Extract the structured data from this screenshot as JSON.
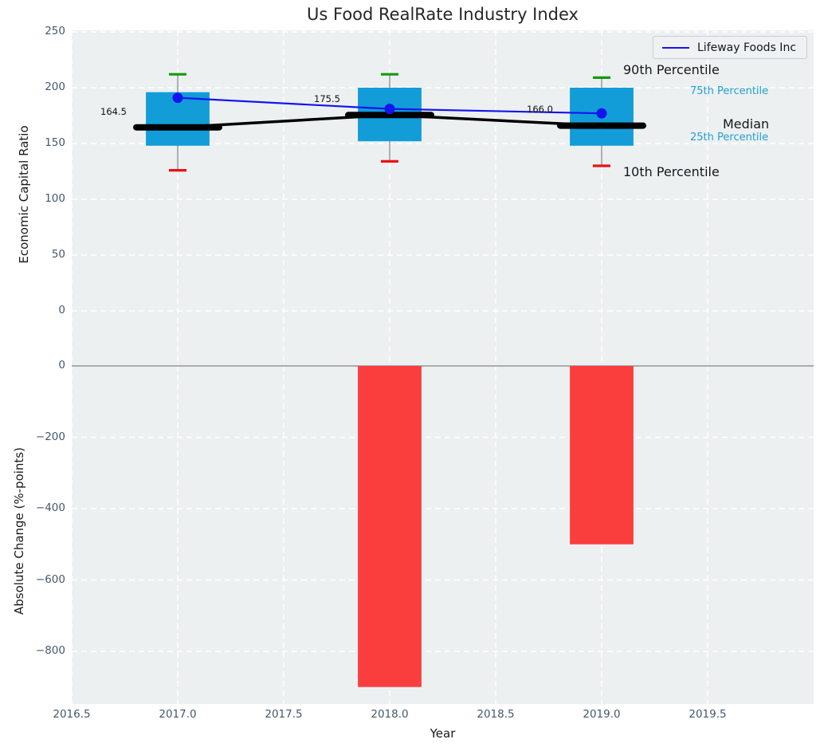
{
  "title": "Us Food RealRate Industry Index",
  "legend": {
    "label": "Lifeway Foods Inc"
  },
  "axes": {
    "x": {
      "label": "Year",
      "ticks": [
        2016.5,
        2017.0,
        2017.5,
        2018.0,
        2018.5,
        2019.0,
        2019.5
      ],
      "tick_labels": [
        "2016.5",
        "2017.0",
        "2017.5",
        "2018.0",
        "2018.5",
        "2019.0",
        "2019.5"
      ],
      "lim": [
        2016.5,
        2020.0
      ]
    },
    "top": {
      "ylabel": "Economic Capital Ratio",
      "ticks": [
        0,
        50,
        100,
        150,
        200,
        250
      ],
      "tick_labels": [
        "0",
        "50",
        "100",
        "150",
        "200",
        "250"
      ],
      "ylim": [
        -42,
        256
      ]
    },
    "bottom": {
      "ylabel": "Absolute Change (%-points)",
      "ticks": [
        0,
        -200,
        -400,
        -600,
        -800
      ],
      "tick_labels": [
        "0",
        "−200",
        "−400",
        "−600",
        "−800"
      ],
      "ylim": [
        -944,
        32
      ]
    }
  },
  "annotations": {
    "p90": {
      "text": "90th Percentile"
    },
    "p75": {
      "text": "75th Percentile"
    },
    "median": {
      "text": "Median"
    },
    "p25": {
      "text": "25th Percentile"
    },
    "p10": {
      "text": "10th Percentile"
    },
    "median_values": [
      "164.5",
      "175.5",
      "166.0"
    ]
  },
  "chart_data": [
    {
      "type": "box",
      "title": "Us Food RealRate Industry Index",
      "x": [
        2017,
        2018,
        2019
      ],
      "median": [
        164.5,
        175.5,
        166.0
      ],
      "q1": [
        148,
        152,
        148
      ],
      "q3": [
        196,
        200,
        200
      ],
      "whisker_low": [
        126,
        134,
        130
      ],
      "whisker_high": [
        212,
        212,
        209
      ],
      "series": [
        {
          "name": "Lifeway Foods Inc",
          "values": [
            191,
            181,
            177
          ]
        }
      ],
      "ylabel": "Economic Capital Ratio",
      "xlabel": "Year",
      "box_width_years": 0.3,
      "grid": true,
      "legend_position": "upper right"
    },
    {
      "type": "bar",
      "x": [
        2018,
        2019
      ],
      "values": [
        -900,
        -500
      ],
      "ylabel": "Absolute Change (%-points)",
      "xlabel": "Year",
      "grid": true,
      "legend_position": "none"
    }
  ],
  "colors": {
    "box_fill": "#129cd8",
    "bar_fill": "#fa3e3e",
    "company_line": "#1414f0",
    "median_line": "#000000",
    "whisker_line": "#8a8a8a",
    "whisker_high_cap": "#119b11",
    "whisker_low_cap": "#ee1111",
    "plot_bg": "#edf0f1",
    "grid": "#ffffff",
    "zero_line": "#ababab",
    "tick_label": "#45586c",
    "percentile_label_blue": "#1f9fd4"
  }
}
